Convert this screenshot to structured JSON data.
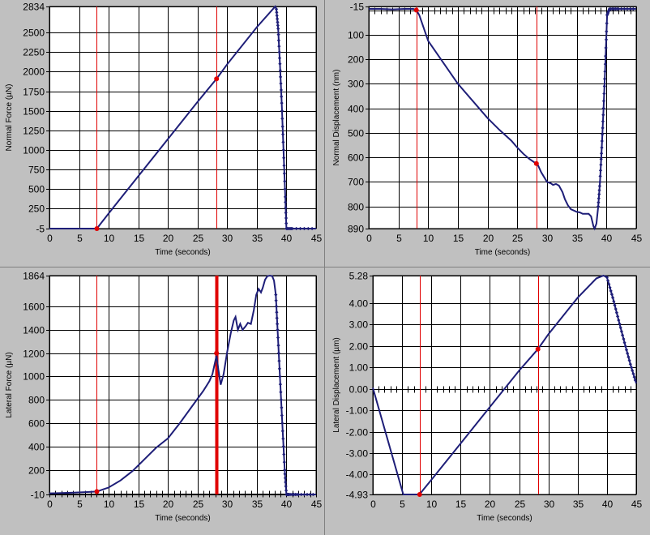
{
  "colors": {
    "series": "#1e1e78",
    "marker": "#e00000",
    "background": "#c0c0c0"
  },
  "chart_data": [
    {
      "type": "line",
      "xlabel": "Time (seconds)",
      "ylabel": "Normal Force (µN)",
      "xlim": [
        0,
        45
      ],
      "ylim": [
        -5,
        2834
      ],
      "xticks": [
        0,
        5,
        10,
        15,
        20,
        25,
        30,
        35,
        40,
        45
      ],
      "yticks": [
        -5,
        250,
        500,
        750,
        1000,
        1250,
        1500,
        1750,
        2000,
        2250,
        2500,
        2834
      ],
      "ytick_labels": [
        "-5",
        "250",
        "500",
        "750",
        "1000",
        "1250",
        "1500",
        "1750",
        "2000",
        "2250",
        "2500",
        "2834"
      ],
      "ticks_on_zero": false,
      "markers": [
        {
          "x": 8.0,
          "width": 1
        },
        {
          "x": 28.2,
          "width": 1
        }
      ],
      "marker_points": [
        {
          "x": 8.0,
          "y": -5
        },
        {
          "x": 28.2,
          "y": 1910
        }
      ],
      "dots_from_x": 38.3,
      "series": [
        {
          "x": [
            0,
            5,
            7.9,
            8.0,
            10,
            15,
            20,
            25,
            28.2,
            30,
            35,
            38.1,
            38.3,
            38.6,
            38.9,
            39.2,
            39.5,
            39.8,
            40.0,
            41,
            45
          ],
          "y": [
            -5,
            -5,
            -5,
            -5,
            190,
            665,
            1140,
            1615,
            1910,
            2095,
            2570,
            2834,
            2800,
            2550,
            2100,
            1600,
            1000,
            400,
            -5,
            -5,
            -5
          ]
        }
      ]
    },
    {
      "type": "line",
      "xlabel": "Time (seconds)",
      "ylabel": "Normal Displacement (nm)",
      "xlim": [
        0,
        45
      ],
      "ylim": [
        890,
        -15
      ],
      "xticks": [
        0,
        5,
        10,
        15,
        20,
        25,
        30,
        35,
        40,
        45
      ],
      "yticks": [
        -15,
        100,
        200,
        300,
        400,
        500,
        600,
        700,
        800,
        890
      ],
      "ytick_labels": [
        "-15",
        "100",
        "200",
        "300",
        "400",
        "500",
        "600",
        "700",
        "800",
        "890"
      ],
      "ticks_on_zero": true,
      "zero_value": 0,
      "markers": [
        {
          "x": 8.0,
          "width": 1
        },
        {
          "x": 28.2,
          "width": 1
        }
      ],
      "marker_points": [
        {
          "x": 8.0,
          "y": 0
        },
        {
          "x": 28.2,
          "y": 625
        }
      ],
      "dots_from_x": 38.6,
      "series": [
        {
          "x": [
            0,
            2,
            4,
            6,
            7.5,
            8.0,
            8.5,
            10,
            15,
            20,
            22,
            24,
            25,
            26,
            27,
            28.0,
            28.4,
            29,
            30,
            30.6,
            31,
            31.5,
            32,
            32.6,
            33,
            33.5,
            34,
            35,
            35.5,
            36,
            36.5,
            37,
            37.4,
            37.8,
            38.0,
            38.3,
            38.6,
            38.9,
            39.2,
            39.5,
            39.8,
            40.1,
            40.5,
            42,
            45
          ],
          "y": [
            -5,
            -5,
            -3,
            -5,
            -5,
            0,
            20,
            125,
            300,
            440,
            488,
            532,
            560,
            585,
            606,
            622,
            628,
            660,
            700,
            705,
            712,
            708,
            715,
            742,
            770,
            795,
            811,
            822,
            824,
            830,
            830,
            830,
            840,
            880,
            890,
            870,
            800,
            700,
            560,
            400,
            220,
            20,
            -5,
            -5,
            -5
          ]
        }
      ]
    },
    {
      "type": "line",
      "xlabel": "Time (seconds)",
      "ylabel": "Lateral Force (µN)",
      "xlim": [
        0,
        45
      ],
      "ylim": [
        -10,
        1864
      ],
      "xticks": [
        0,
        5,
        10,
        15,
        20,
        25,
        30,
        35,
        40,
        45
      ],
      "yticks": [
        -10,
        200,
        400,
        600,
        800,
        1000,
        1200,
        1400,
        1600,
        1864
      ],
      "ytick_labels": [
        "-10",
        "200",
        "400",
        "600",
        "800",
        "1000",
        "1200",
        "1400",
        "1600",
        "1864"
      ],
      "ticks_on_zero": true,
      "zero_value": 0,
      "markers": [
        {
          "x": 8.0,
          "width": 1
        },
        {
          "x": 28.2,
          "width": 4
        }
      ],
      "marker_points": [
        {
          "x": 8.0,
          "y": 15
        },
        {
          "x": 28.2,
          "y": 1200
        }
      ],
      "dots_from_x": 38.2,
      "series": [
        {
          "x": [
            0,
            2,
            4,
            6,
            8,
            10,
            12,
            14,
            16,
            18,
            20,
            22,
            24,
            25,
            26,
            27,
            27.5,
            28.2,
            28.5,
            28.9,
            29.4,
            30,
            30.6,
            31.1,
            31.4,
            31.8,
            32.2,
            32.6,
            33.1,
            33.5,
            34.0,
            34.5,
            34.9,
            35.3,
            35.7,
            36.0,
            36.4,
            36.8,
            37.2,
            37.6,
            37.9,
            38.2,
            38.5,
            38.9,
            39.3,
            39.7,
            40.0,
            40.5,
            42,
            45
          ],
          "y": [
            0,
            2,
            5,
            10,
            15,
            50,
            110,
            190,
            290,
            390,
            470,
            600,
            740,
            810,
            880,
            960,
            1020,
            1180,
            1060,
            930,
            1020,
            1210,
            1370,
            1480,
            1510,
            1400,
            1450,
            1400,
            1430,
            1460,
            1450,
            1570,
            1700,
            1750,
            1720,
            1760,
            1830,
            1860,
            1864,
            1860,
            1820,
            1700,
            1400,
            1000,
            600,
            200,
            -10,
            -10,
            -10,
            -10
          ]
        }
      ]
    },
    {
      "type": "line",
      "xlabel": "Time (seconds)",
      "ylabel": "Lateral Displacement (µm)",
      "xlim": [
        0,
        45
      ],
      "ylim": [
        -4.93,
        5.28
      ],
      "xticks": [
        0,
        5,
        10,
        15,
        20,
        25,
        30,
        35,
        40,
        45
      ],
      "yticks": [
        -4.93,
        -4.0,
        -3.0,
        -2.0,
        -1.0,
        0.0,
        1.0,
        2.0,
        3.0,
        4.0,
        5.28
      ],
      "ytick_labels": [
        "-4.93",
        "-4.00",
        "-3.00",
        "-2.00",
        "-1.00",
        "0.00",
        "1.00",
        "2.00",
        "3.00",
        "4.00",
        "5.28"
      ],
      "ticks_on_zero": true,
      "zero_value": 0,
      "markers": [
        {
          "x": 8.0,
          "width": 1
        },
        {
          "x": 28.2,
          "width": 1
        }
      ],
      "marker_points": [
        {
          "x": 8.0,
          "y": -4.93
        },
        {
          "x": 28.2,
          "y": 1.85
        }
      ],
      "dots_from_x": 40.0,
      "series": [
        {
          "x": [
            0,
            5.2,
            7.9,
            8.2,
            10,
            15,
            20,
            25,
            28.2,
            30,
            35,
            38.2,
            39.4,
            40.0,
            41,
            42,
            43,
            44,
            45
          ],
          "y": [
            0.05,
            -4.93,
            -4.93,
            -4.85,
            -4.25,
            -2.55,
            -0.85,
            0.85,
            1.85,
            2.55,
            4.25,
            5.15,
            5.28,
            5.2,
            4.25,
            3.2,
            2.15,
            1.15,
            0.25
          ]
        }
      ]
    }
  ]
}
